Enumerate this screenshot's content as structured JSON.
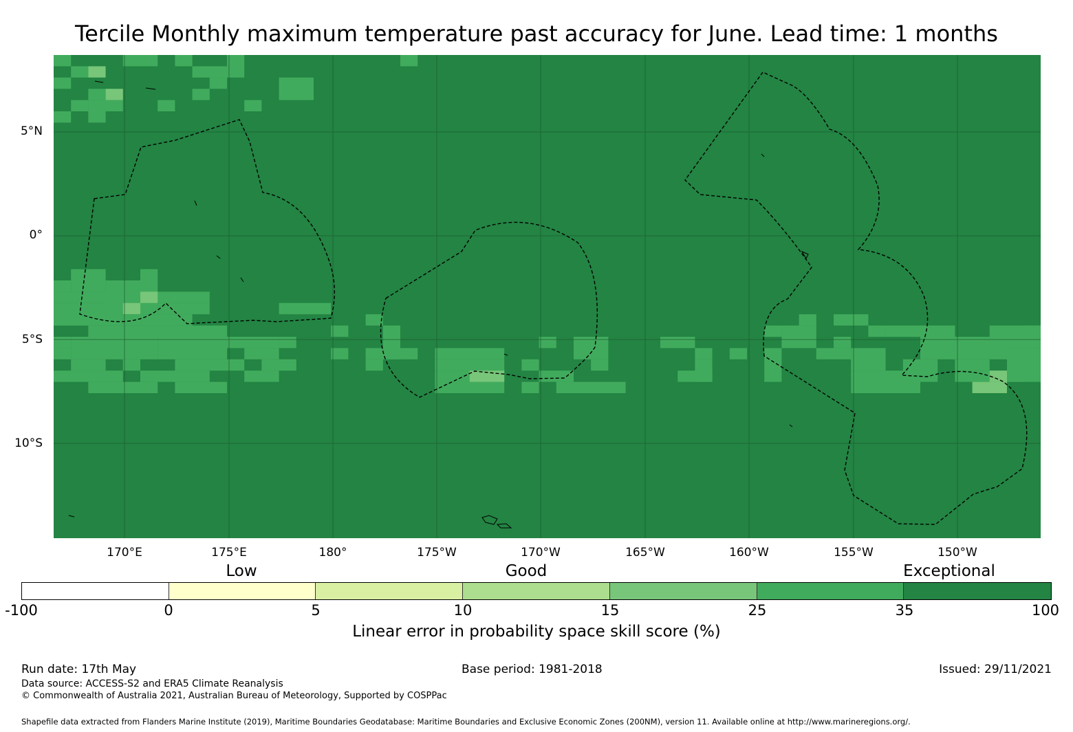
{
  "title": "Tercile Monthly maximum temperature past accuracy for June. Lead time: 1 months",
  "map": {
    "lat_labels": [
      "5°N",
      "0°",
      "5°S",
      "10°S"
    ],
    "lon_labels": [
      "170°E",
      "175°E",
      "180°",
      "175°W",
      "170°W",
      "165°W",
      "160°W",
      "155°W",
      "150°W"
    ],
    "colors": {
      "exceptional_dark": "#238443",
      "exceptional": "#41ab5d",
      "good_high": "#78c679",
      "grid": "#1a5a2e",
      "boundary": "#000000"
    }
  },
  "colorbar": {
    "qualitative": [
      "Low",
      "Good",
      "Exceptional"
    ],
    "ticks": [
      "-100",
      "0",
      "5",
      "10",
      "15",
      "25",
      "35",
      "100"
    ],
    "colors": [
      "#ffffff",
      "#ffffcc",
      "#d9f0a3",
      "#addd8e",
      "#78c679",
      "#41ab5d",
      "#238443"
    ],
    "label": "Linear error in probability space skill score (%)"
  },
  "footer": {
    "run_date": "Run date: 17th May",
    "base_period": "Base period: 1981-2018",
    "issued": "Issued: 29/11/2021",
    "data_source": "Data source: ACCESS-S2 and ERA5 Climate Reanalysis",
    "copyright": "© Commonwealth of Australia 2021, Australian Bureau of Meteorology, Supported by COSPPac",
    "shapefile": "Shapefile data extracted from Flanders Marine Institute (2019), Maritime Boundaries Geodatabase: Maritime Boundaries and Exclusive Economic Zones (200NM), version 11. Available online at http://www.marineregions.org/."
  }
}
